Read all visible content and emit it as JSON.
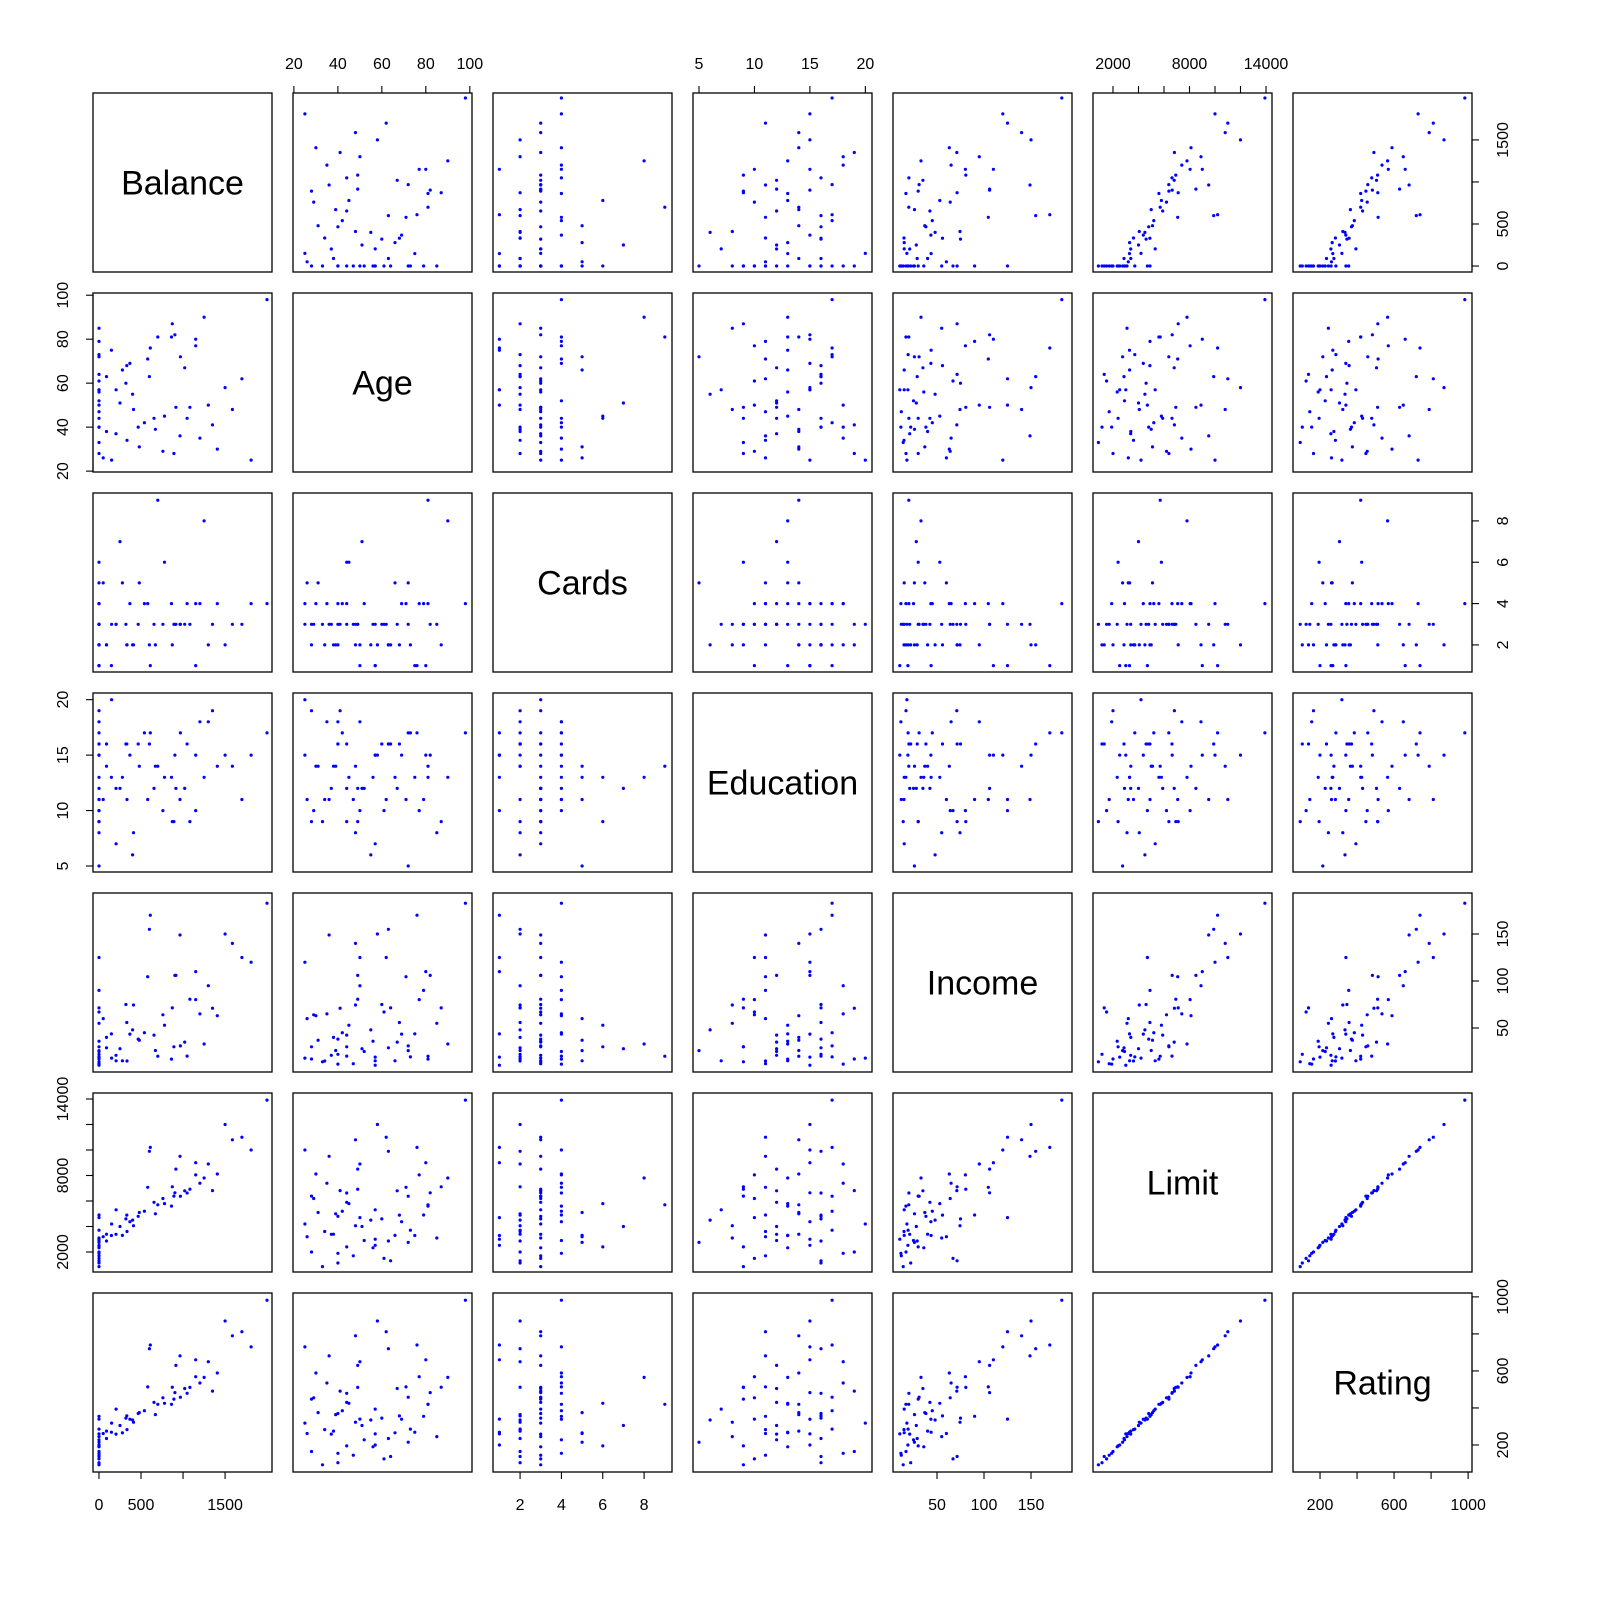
{
  "chart_data": {
    "type": "scatter-matrix",
    "title": "",
    "point_color": "#0000ff",
    "variables": [
      "Balance",
      "Age",
      "Cards",
      "Education",
      "Income",
      "Limit",
      "Rating"
    ],
    "axes": {
      "Balance": {
        "lim": [
          -71,
          2058
        ],
        "ticks": [
          0,
          500,
          1000,
          1500
        ],
        "labels": [
          "0",
          "500",
          "",
          "1500"
        ]
      },
      "Age": {
        "lim": [
          19.6,
          101
        ],
        "ticks": [
          20,
          40,
          60,
          80,
          100
        ],
        "labels": [
          "20",
          "40",
          "60",
          "80",
          "100"
        ]
      },
      "Cards": {
        "lim": [
          0.69,
          9.35
        ],
        "ticks": [
          2,
          4,
          6,
          8
        ],
        "labels": [
          "2",
          "4",
          "6",
          "8"
        ]
      },
      "Education": {
        "lim": [
          4.46,
          20.6
        ],
        "ticks": [
          5,
          10,
          15,
          20
        ],
        "labels": [
          "5",
          "10",
          "15",
          "20"
        ]
      },
      "Income": {
        "lim": [
          3.2,
          193.6
        ],
        "ticks": [
          50,
          100,
          150
        ],
        "labels": [
          "50",
          "100",
          "150"
        ]
      },
      "Limit": {
        "lim": [
          432,
          14470
        ],
        "ticks": [
          2000,
          4000,
          6000,
          8000,
          10000,
          12000,
          14000
        ],
        "labels": [
          "2000",
          "",
          "",
          "8000",
          "",
          "",
          "14000"
        ]
      },
      "Rating": {
        "lim": [
          54,
          1021
        ],
        "ticks": [
          200,
          400,
          600,
          800,
          1000
        ],
        "labels": [
          "200",
          "",
          "600",
          "",
          "1000"
        ]
      }
    },
    "rows": [
      [
        333,
        34,
        2,
        11,
        14.9,
        3606,
        283
      ],
      [
        903,
        82,
        3,
        15,
        106.0,
        6645,
        483
      ],
      [
        580,
        71,
        4,
        11,
        104.6,
        7075,
        514
      ],
      [
        964,
        36,
        3,
        11,
        148.9,
        9504,
        681
      ],
      [
        331,
        68,
        2,
        16,
        55.9,
        4897,
        357
      ],
      [
        1151,
        77,
        4,
        10,
        80.2,
        8047,
        569
      ],
      [
        203,
        37,
        3,
        12,
        21.0,
        3388,
        259
      ],
      [
        872,
        87,
        2,
        9,
        71.4,
        7114,
        512
      ],
      [
        279,
        66,
        5,
        13,
        15.1,
        3300,
        266
      ],
      [
        1350,
        41,
        3,
        19,
        71.1,
        6819,
        491
      ],
      [
        1407,
        30,
        4,
        14,
        63.1,
        8117,
        589
      ],
      [
        0,
        64,
        2,
        16,
        71.4,
        1311,
        138
      ],
      [
        204,
        57,
        3,
        7,
        15.1,
        5308,
        394
      ],
      [
        1081,
        49,
        3,
        9,
        80.6,
        6922,
        511
      ],
      [
        148,
        75,
        1,
        13,
        43.7,
        3291,
        269
      ],
      [
        0,
        57,
        1,
        15,
        19.1,
        2525,
        200
      ],
      [
        0,
        73,
        2,
        17,
        19.3,
        3714,
        286
      ],
      [
        368,
        69,
        4,
        15,
        43.5,
        4378,
        339
      ],
      [
        891,
        28,
        3,
        9,
        30.0,
        6384,
        448
      ],
      [
        1048,
        44,
        4,
        16,
        20.1,
        6626,
        479
      ],
      [
        89,
        63,
        2,
        16,
        28.9,
        2860,
        235
      ],
      [
        968,
        72,
        3,
        17,
        31.0,
        6375,
        458
      ],
      [
        0,
        61,
        3,
        10,
        67.0,
        1500,
        125
      ],
      [
        411,
        48,
        2,
        8,
        74.5,
        4060,
        323
      ],
      [
        0,
        57,
        1,
        15,
        10.4,
        3008,
        260
      ],
      [
        671,
        39,
        2,
        14,
        26.1,
        5000,
        364
      ],
      [
        654,
        44,
        3,
        12,
        42.4,
        5900,
        430
      ],
      [
        467,
        40,
        3,
        16,
        38.2,
        4800,
        370
      ],
      [
        1809,
        25,
        4,
        15,
        120.0,
        10000,
        730
      ],
      [
        915,
        49,
        3,
        12,
        106.0,
        8500,
        630
      ],
      [
        0,
        40,
        4,
        18,
        11.6,
        1900,
        155
      ],
      [
        863,
        81,
        4,
        13,
        16.9,
        5600,
        420
      ],
      [
        0,
        56,
        3,
        13,
        36.0,
        2330,
        190
      ],
      [
        0,
        40,
        2,
        16,
        22.0,
        1135,
        104
      ],
      [
        1587,
        48,
        3,
        14,
        140.0,
        10800,
        790
      ],
      [
        50,
        26,
        5,
        11,
        60.0,
        3200,
        262
      ],
      [
        1200,
        35,
        4,
        18,
        65.0,
        7400,
        535
      ],
      [
        0,
        79,
        4,
        11,
        90.0,
        4900,
        355
      ],
      [
        1999,
        98,
        4,
        17,
        182.7,
        13913,
        982
      ],
      [
        0,
        44,
        6,
        9,
        30.0,
        2400,
        195
      ],
      [
        600,
        63,
        2,
        16,
        155.0,
        9900,
        720
      ],
      [
        1500,
        58,
        2,
        15,
        150.0,
        12000,
        870
      ],
      [
        250,
        51,
        7,
        12,
        28.0,
        4000,
        305
      ],
      [
        0,
        52,
        4,
        12,
        25.0,
        2900,
        228
      ],
      [
        480,
        31,
        5,
        14,
        37.0,
        5100,
        375
      ],
      [
        1700,
        62,
        3,
        11,
        125.0,
        11000,
        812
      ],
      [
        700,
        81,
        9,
        14,
        20.0,
        5700,
        420
      ],
      [
        0,
        50,
        1,
        10,
        125.0,
        4700,
        340
      ],
      [
        150,
        25,
        3,
        20,
        18.0,
        4200,
        318
      ],
      [
        780,
        45,
        6,
        13,
        53.0,
        5800,
        425
      ],
      [
        320,
        60,
        3,
        16,
        75.0,
        4600,
        345
      ],
      [
        1300,
        50,
        2,
        18,
        95.0,
        8900,
        650
      ],
      [
        0,
        85,
        3,
        8,
        55.0,
        3100,
        245
      ],
      [
        0,
        28,
        2,
        19,
        17.0,
        2000,
        165
      ],
      [
        1020,
        67,
        3,
        12,
        35.0,
        6800,
        505
      ],
      [
        540,
        42,
        4,
        17,
        45.0,
        5200,
        385
      ],
      [
        0,
        33,
        3,
        9,
        14.0,
        855,
        93
      ],
      [
        1150,
        80,
        1,
        15,
        110.0,
        9000,
        660
      ],
      [
        400,
        55,
        2,
        6,
        48.0,
        4500,
        335
      ],
      [
        0,
        72,
        5,
        5,
        26.0,
        2750,
        215
      ],
      [
        760,
        29,
        3,
        10,
        64.0,
        6200,
        455
      ],
      [
        1250,
        90,
        8,
        13,
        33.0,
        7800,
        565
      ],
      [
        90,
        38,
        2,
        14,
        40.0,
        3400,
        275
      ],
      [
        610,
        76,
        1,
        17,
        170.0,
        10200,
        740
      ],
      [
        0,
        47,
        3,
        11,
        12.0,
        1700,
        145
      ]
    ]
  }
}
